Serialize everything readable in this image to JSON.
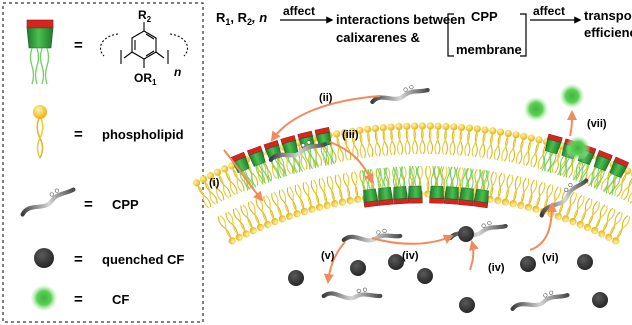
{
  "legend": {
    "items": [
      {
        "key": "calixarene",
        "symbol": "=",
        "label": ""
      },
      {
        "key": "phospholipid",
        "symbol": "=",
        "label": "phospholipid"
      },
      {
        "key": "cpp",
        "symbol": "=",
        "label": "CPP"
      },
      {
        "key": "quenched",
        "symbol": "=",
        "label": "quenched CF"
      },
      {
        "key": "cf",
        "symbol": "=",
        "label": "CF"
      }
    ],
    "structure": {
      "r2": "R",
      "r2_sub": "2",
      "or1": "OR",
      "or1_sub": "1",
      "n": "n"
    }
  },
  "header": {
    "vars": "R",
    "var1_sub": "1",
    "var_sep": ", R",
    "var2_sub": "2",
    "var_n": ", n",
    "affect1": "affect",
    "interactions_line1": "interactions between",
    "interactions_line2": "calixarenes &",
    "bracket_top": "CPP",
    "bracket_bottom": "membrane",
    "affect2": "affect",
    "result_line1": "transport",
    "result_line2": "efficiency"
  },
  "steps": [
    "(i)",
    "(ii)",
    "(iii)",
    "(iv)",
    "(iv)",
    "(v)",
    "(vi)",
    "(vii)"
  ],
  "colors": {
    "lipid_head": "#f2c21b",
    "lipid_tail": "#e0c21e",
    "calix_green": "#2e9a3a",
    "calix_red": "#d8241f",
    "tail_green": "#7ad36a",
    "arrow": "#f28a5c",
    "dark_ball": "#3a3a3a",
    "cf_green": "#4cc24a"
  }
}
